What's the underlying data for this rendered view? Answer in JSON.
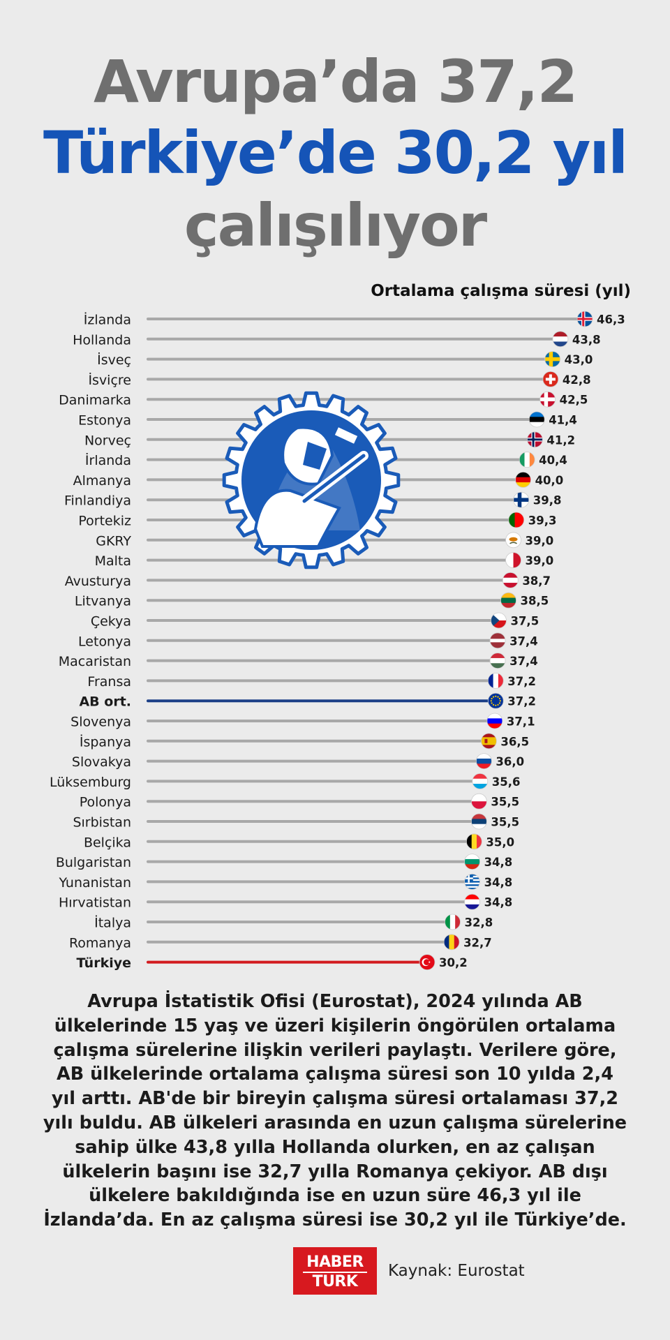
{
  "header": {
    "line1": "Avrupa’da 37,2",
    "line2": "Türkiye’de 30,2 yıl",
    "line3": "çalışılıyor"
  },
  "chart_data": {
    "type": "bar",
    "orientation": "horizontal",
    "value_label": "Ortalama çalışma süresi (yıl)",
    "highlight": {
      "AB ort.": "#1c3f87",
      "Türkiye": "#d21b1f"
    },
    "bar_color": "#a8a8a8",
    "categories": [
      "İzlanda",
      "Hollanda",
      "İsveç",
      "İsviçre",
      "Danimarka",
      "Estonya",
      "Norveç",
      "İrlanda",
      "Almanya",
      "Finlandiya",
      "Portekiz",
      "GKRY",
      "Malta",
      "Avusturya",
      "Litvanya",
      "Çekya",
      "Letonya",
      "Macaristan",
      "Fransa",
      "AB ort.",
      "Slovenya",
      "İspanya",
      "Slovakya",
      "Lüksemburg",
      "Polonya",
      "Sırbistan",
      "Belçika",
      "Bulgaristan",
      "Yunanistan",
      "Hırvatistan",
      "İtalya",
      "Romanya",
      "Türkiye"
    ],
    "labels": [
      "46,3",
      "43,8",
      "43,0",
      "42,8",
      "42,5",
      "41,4",
      "41,2",
      "40,4",
      "40,0",
      "39,8",
      "39,3",
      "39,0",
      "39,0",
      "38,7",
      "38,5",
      "37,5",
      "37,4",
      "37,4",
      "37,2",
      "37,2",
      "37,1",
      "36,5",
      "36,0",
      "35,6",
      "35,5",
      "35,5",
      "35,0",
      "34,8",
      "34,8",
      "34,8",
      "32,8",
      "32,7",
      "30,2"
    ],
    "values": [
      46.3,
      43.8,
      43.0,
      42.8,
      42.5,
      41.4,
      41.2,
      40.4,
      40.0,
      39.8,
      39.3,
      39.0,
      39.0,
      38.7,
      38.5,
      37.5,
      37.4,
      37.4,
      37.2,
      37.2,
      37.1,
      36.5,
      36.0,
      35.6,
      35.5,
      35.5,
      35.0,
      34.8,
      34.8,
      34.8,
      32.8,
      32.7,
      30.2
    ]
  },
  "flags": [
    {
      "type": "nordic",
      "bg": "#02529c",
      "cross": "#ffffff",
      "inner": "#dc1e35"
    },
    {
      "type": "h",
      "colors": [
        "#ae1c28",
        "#ffffff",
        "#21468b"
      ]
    },
    {
      "type": "nordic",
      "bg": "#006aa7",
      "cross": "#fecc00"
    },
    {
      "type": "swiss"
    },
    {
      "type": "nordic",
      "bg": "#c8102e",
      "cross": "#ffffff"
    },
    {
      "type": "h",
      "colors": [
        "#0072ce",
        "#000000",
        "#ffffff"
      ]
    },
    {
      "type": "nordic",
      "bg": "#ba0c2f",
      "cross": "#ffffff",
      "inner": "#00205b"
    },
    {
      "type": "v",
      "colors": [
        "#169b62",
        "#ffffff",
        "#ff883e"
      ]
    },
    {
      "type": "h",
      "colors": [
        "#000000",
        "#dd0000",
        "#ffce00"
      ]
    },
    {
      "type": "nordic",
      "bg": "#ffffff",
      "cross": "#003580"
    },
    {
      "type": "vw",
      "colors": [
        "#006600",
        "#ff0000"
      ]
    },
    {
      "type": "cyprus"
    },
    {
      "type": "v",
      "colors": [
        "#ffffff",
        "#cf142b"
      ]
    },
    {
      "type": "h",
      "colors": [
        "#c8102e",
        "#ffffff",
        "#c8102e"
      ]
    },
    {
      "type": "h",
      "colors": [
        "#fdb913",
        "#006a44",
        "#c1272d"
      ]
    },
    {
      "type": "czech"
    },
    {
      "type": "latvia"
    },
    {
      "type": "h",
      "colors": [
        "#ce2939",
        "#ffffff",
        "#477050"
      ]
    },
    {
      "type": "v",
      "colors": [
        "#002395",
        "#ffffff",
        "#ed2939"
      ]
    },
    {
      "type": "eu"
    },
    {
      "type": "h",
      "colors": [
        "#ffffff",
        "#0000ff",
        "#ff0000"
      ]
    },
    {
      "type": "spain"
    },
    {
      "type": "h",
      "colors": [
        "#ffffff",
        "#0b4ea2",
        "#ee1c25"
      ]
    },
    {
      "type": "h",
      "colors": [
        "#ef3340",
        "#ffffff",
        "#00a3e0"
      ]
    },
    {
      "type": "h",
      "colors": [
        "#ffffff",
        "#dc143c"
      ]
    },
    {
      "type": "h",
      "colors": [
        "#c6363c",
        "#0c4076",
        "#ffffff"
      ]
    },
    {
      "type": "v",
      "colors": [
        "#000000",
        "#fdda24",
        "#ef3340"
      ]
    },
    {
      "type": "h",
      "colors": [
        "#ffffff",
        "#00966e",
        "#d62612"
      ]
    },
    {
      "type": "greece"
    },
    {
      "type": "h",
      "colors": [
        "#ff0000",
        "#ffffff",
        "#171796"
      ]
    },
    {
      "type": "v",
      "colors": [
        "#009246",
        "#ffffff",
        "#ce2b37"
      ]
    },
    {
      "type": "v",
      "colors": [
        "#002b7f",
        "#fcd116",
        "#ce1126"
      ]
    },
    {
      "type": "turkey"
    }
  ],
  "description": "Avrupa İstatistik Ofisi (Eurostat), 2024 yılında AB ülkelerinde 15 yaş ve üzeri kişilerin öngörülen ortalama çalışma sürelerine ilişkin verileri paylaştı. Verilere göre, AB ülkelerinde ortalama çalışma süresi son 10 yılda 2,4 yıl arttı. AB'de bir bireyin çalışma süresi ortalaması 37,2 yılı buldu. AB ülkeleri arasında en uzun çalışma sürelerine sahip ülke 43,8 yılla Hollanda olurken, en az çalışan ülkelerin başını ise 32,7 yılla Romanya çekiyor. AB dışı ülkelere bakıldığında ise en uzun süre 46,3 yıl ile İzlanda’da. En az  çalışma süresi ise 30,2 yıl ile Türkiye’de.",
  "footer": {
    "logo_top": "HABER",
    "logo_bottom": "TURK",
    "source": "Kaynak: Eurostat"
  },
  "icons": {
    "emblem": "gear-welder-icon"
  },
  "colors": {
    "title_gray": "#6f6f6f",
    "title_blue": "#1554b7",
    "emblem_blue": "#1a5bb8",
    "logo_red": "#d7191f"
  }
}
